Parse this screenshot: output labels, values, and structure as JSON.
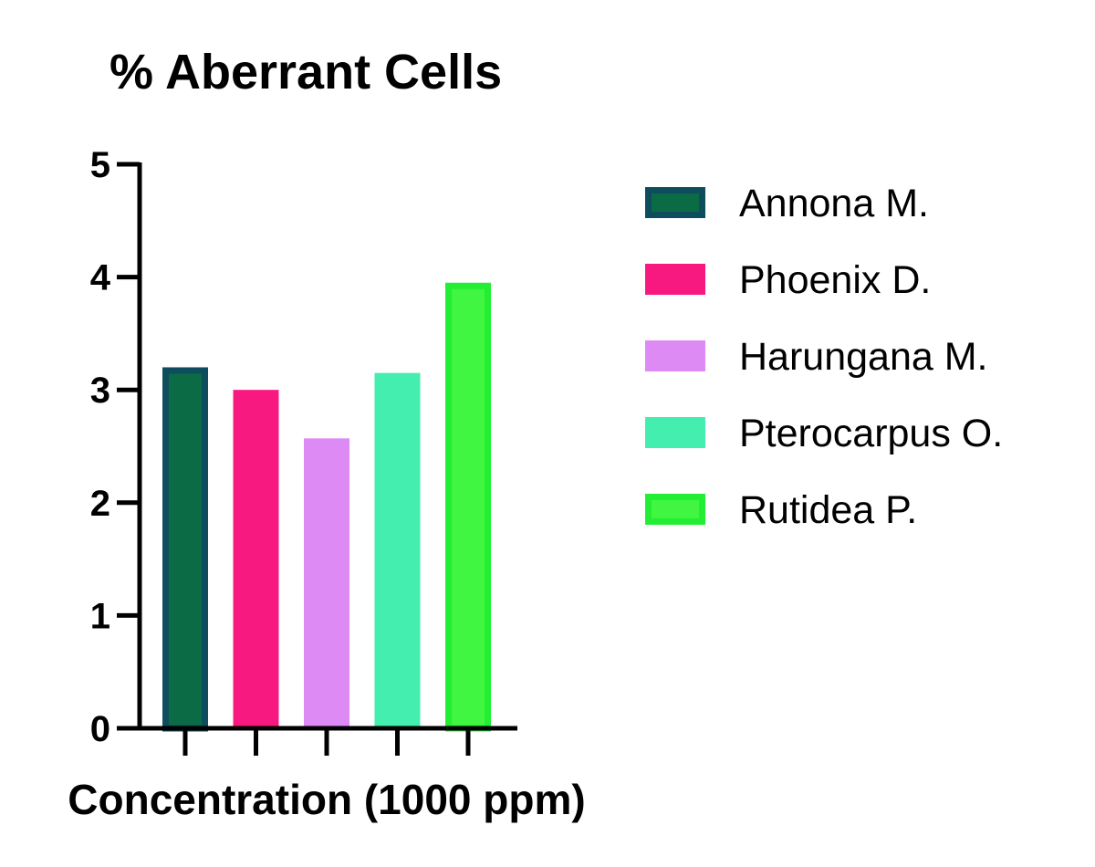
{
  "chart_data": {
    "type": "bar",
    "title": "% Aberrant Cells",
    "xlabel": "Concentration (1000 ppm)",
    "ylabel": "",
    "ylim": [
      0,
      5
    ],
    "yticks": [
      "0",
      "1",
      "2",
      "3",
      "4",
      "5"
    ],
    "grid": false,
    "legend_position": "right",
    "series": [
      {
        "name": "Annona M.",
        "value": 3.2,
        "fill": "#0b6b45",
        "stroke": "#0d4d5e"
      },
      {
        "name": "Phoenix D.",
        "value": 3.0,
        "fill": "#f7197f",
        "stroke": "#f7197f"
      },
      {
        "name": "Harungana M.",
        "value": 2.57,
        "fill": "#dd8af5",
        "stroke": "#dd8af5"
      },
      {
        "name": "Pterocarpus O.",
        "value": 3.15,
        "fill": "#43eeae",
        "stroke": "#43eeae"
      },
      {
        "name": "Rutidea P.",
        "value": 3.95,
        "fill": "#40f640",
        "stroke": "#22ee33"
      }
    ]
  }
}
